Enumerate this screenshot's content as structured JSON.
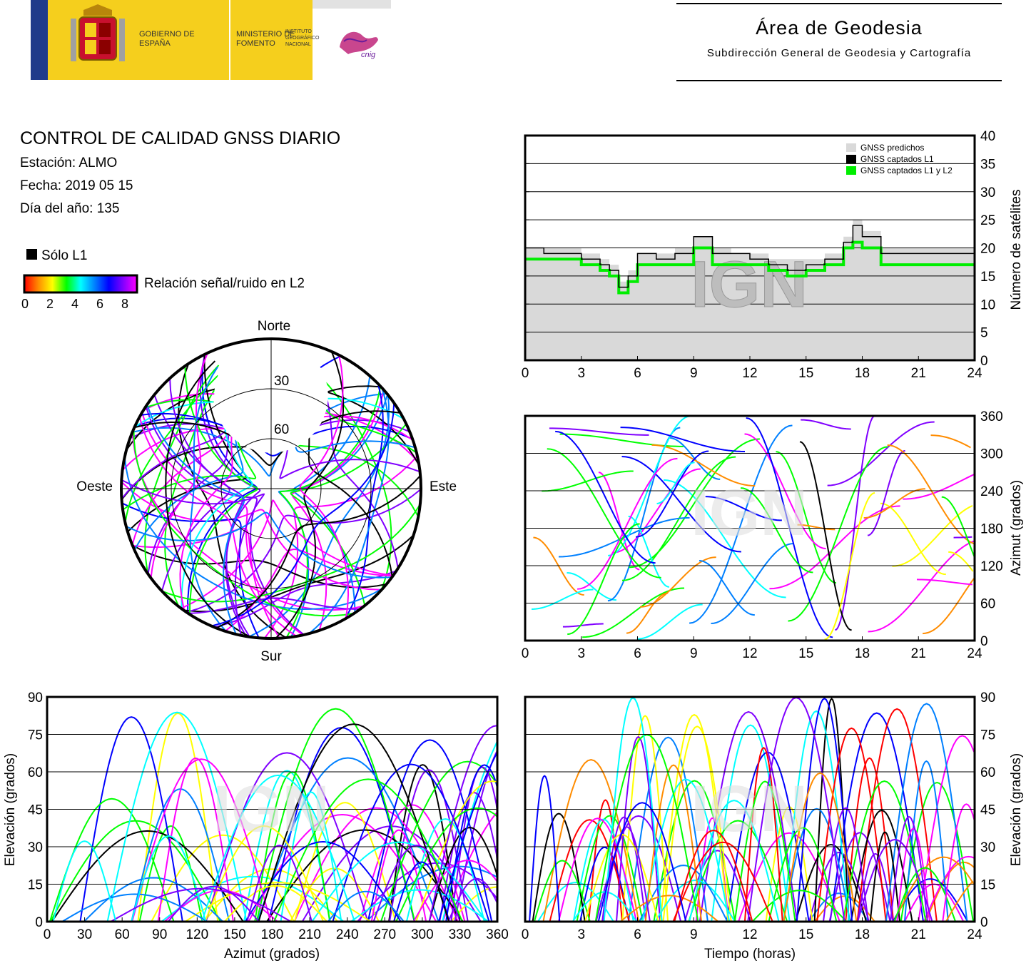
{
  "header": {
    "gobierno": "GOBIERNO DE ESPAÑA",
    "ministerio": "MINISTERIO DE FOMENTO",
    "instituto": "INSTITUTO GEOGRÁFICO NACIONAL",
    "cnig": "cnig",
    "area_title": "Área de Geodesia",
    "area_subtitle": "Subdirección General de Geodesia y Cartografía"
  },
  "info": {
    "title": "CONTROL DE CALIDAD GNSS DIARIO",
    "station": "Estación: ALMO",
    "date": "Fecha: 2019 05 15",
    "doy": "Día del año: 135"
  },
  "legend": {
    "solo_l1": "Sólo L1",
    "snr_label": "Relación señal/ruido en L2",
    "snr_ticks": [
      "0",
      "2",
      "4",
      "6",
      "8"
    ],
    "snr_colors": [
      "#ff0000",
      "#ff8c00",
      "#ffff00",
      "#00ff00",
      "#00ffff",
      "#0080ff",
      "#0000ff",
      "#8000ff",
      "#ff00ff"
    ]
  },
  "watermark": "IGN",
  "chart_data": [
    {
      "type": "line",
      "id": "satellites",
      "xlim": [
        0,
        24
      ],
      "ylim": [
        0,
        40
      ],
      "xticks": [
        0,
        3,
        6,
        9,
        12,
        15,
        18,
        21,
        24
      ],
      "yticks": [
        0,
        5,
        10,
        15,
        20,
        25,
        30,
        35,
        40
      ],
      "ylabel": "Número de satélites",
      "legend_position": "top-right",
      "series": [
        {
          "name": "GNSS predichos",
          "color": "#d9d9d9",
          "x": [
            0,
            1,
            2,
            3,
            4,
            4.5,
            5,
            5.5,
            6,
            7,
            8,
            9,
            10,
            11,
            12,
            13,
            14,
            15,
            16,
            17,
            17.5,
            18,
            19,
            20,
            21,
            22,
            23,
            24
          ],
          "y": [
            20,
            20,
            20,
            19,
            18,
            17,
            14,
            16,
            19,
            19,
            20,
            22,
            20,
            19,
            19,
            18,
            18,
            18,
            19,
            22,
            25,
            23,
            20,
            20,
            20,
            20,
            20,
            19
          ]
        },
        {
          "name": "GNSS captados L1",
          "color": "#000000",
          "x": [
            0,
            1,
            2,
            3,
            4,
            4.5,
            5,
            5.5,
            6,
            7,
            8,
            9,
            10,
            11,
            12,
            13,
            14,
            15,
            16,
            17,
            17.5,
            18,
            19,
            20,
            21,
            22,
            23,
            24
          ],
          "y": [
            20,
            19,
            19,
            18,
            17,
            16,
            13,
            15,
            19,
            18,
            19,
            22,
            19,
            19,
            18,
            17,
            16,
            17,
            18,
            21,
            24,
            22,
            19,
            19,
            19,
            19,
            19,
            19
          ]
        },
        {
          "name": "GNSS captados L1 y L2",
          "color": "#00ee00",
          "x": [
            0,
            1,
            2,
            3,
            4,
            4.5,
            5,
            5.5,
            6,
            7,
            8,
            9,
            10,
            11,
            12,
            13,
            14,
            15,
            16,
            17,
            17.5,
            18,
            19,
            20,
            21,
            22,
            23,
            24
          ],
          "y": [
            18,
            18,
            18,
            17,
            16,
            15,
            12,
            14,
            17,
            17,
            17,
            20,
            17,
            17,
            17,
            16,
            15,
            16,
            17,
            20,
            21,
            20,
            17,
            17,
            17,
            17,
            17,
            17
          ]
        }
      ]
    },
    {
      "type": "scatter",
      "id": "sky-plot",
      "labels": {
        "north": "Norte",
        "south": "Sur",
        "east": "Este",
        "west": "Oeste"
      },
      "elevation_rings": [
        "30",
        "60"
      ],
      "description_values": "satellite tracks colored by L2 SNR"
    },
    {
      "type": "scatter",
      "id": "azimuth-time",
      "xlim": [
        0,
        24
      ],
      "ylim": [
        0,
        360
      ],
      "xticks": [
        0,
        3,
        6,
        9,
        12,
        15,
        18,
        21,
        24
      ],
      "yticks": [
        0,
        60,
        120,
        180,
        240,
        300,
        360
      ],
      "ylabel": "Azimut (grados)"
    },
    {
      "type": "scatter",
      "id": "elevation-azimuth",
      "xlim": [
        0,
        360
      ],
      "ylim": [
        0,
        90
      ],
      "xticks": [
        0,
        30,
        60,
        90,
        120,
        150,
        180,
        210,
        240,
        270,
        300,
        330,
        360
      ],
      "yticks": [
        0,
        15,
        30,
        45,
        60,
        75,
        90
      ],
      "xlabel": "Azimut (grados)",
      "ylabel": "Elevación (grados)"
    },
    {
      "type": "line",
      "id": "elevation-time",
      "xlim": [
        0,
        24
      ],
      "ylim": [
        0,
        90
      ],
      "xticks": [
        0,
        3,
        6,
        9,
        12,
        15,
        18,
        21,
        24
      ],
      "yticks": [
        0,
        15,
        30,
        45,
        60,
        75,
        90
      ],
      "xlabel": "Tiempo (horas)",
      "ylabel": "Elevación (grados)"
    }
  ]
}
